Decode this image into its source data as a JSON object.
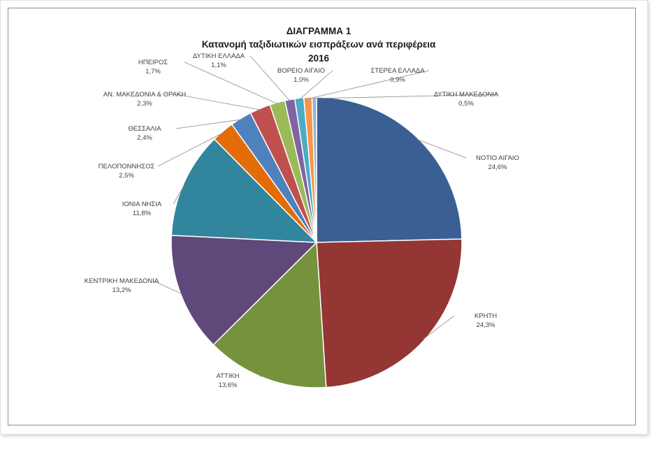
{
  "chart_data": {
    "type": "pie",
    "title_lines": [
      "ΔΙΑΓΡΑΜΜΑ 1",
      "Κατανομή ταξιδιωτικών εισπράξεων ανά περιφέρεια",
      "2016"
    ],
    "slices": [
      {
        "label": "ΝΟΤΙΟ ΑΙΓΑΙΟ",
        "value": 24.6,
        "value_label": "24,6%",
        "color": "#3A6093"
      },
      {
        "label": "ΚΡΗΤΗ",
        "value": 24.3,
        "value_label": "24,3%",
        "color": "#943634"
      },
      {
        "label": "ΑΤΤΙΚΗ",
        "value": 13.6,
        "value_label": "13,6%",
        "color": "#76923C"
      },
      {
        "label": "ΚΕΝΤΡΙΚΗ ΜΑΚΕΔΟΝΙΑ",
        "value": 13.2,
        "value_label": "13,2%",
        "color": "#5F497A"
      },
      {
        "label": "ΙΟΝΙΑ ΝΗΣΙΑ",
        "value": 11.8,
        "value_label": "11,8%",
        "color": "#31859C"
      },
      {
        "label": "ΠΕΛΟΠΟΝΝΗΣΟΣ",
        "value": 2.5,
        "value_label": "2,5%",
        "color": "#E36C09"
      },
      {
        "label": "ΘΕΣΣΑΛΙΑ",
        "value": 2.4,
        "value_label": "2,4%",
        "color": "#4F81BD"
      },
      {
        "label": "ΑΝ. ΜΑΚΕΔΟΝΙΑ & ΘΡΑΚΗ",
        "value": 2.3,
        "value_label": "2,3%",
        "color": "#C0504D"
      },
      {
        "label": "ΗΠΕΙΡΟΣ",
        "value": 1.7,
        "value_label": "1,7%",
        "color": "#9BBB59"
      },
      {
        "label": "ΔΥΤΙΚΗ ΕΛΛΑΔΑ",
        "value": 1.1,
        "value_label": "1,1%",
        "color": "#8064A2"
      },
      {
        "label": "ΒΟΡΕΙΟ ΑΙΓΑΙΟ",
        "value": 1.0,
        "value_label": "1,0%",
        "color": "#4BACC6"
      },
      {
        "label": "ΣΤΕΡΕΑ ΕΛΛΑΔΑ",
        "value": 0.9,
        "value_label": "0,9%",
        "color": "#F79646"
      },
      {
        "label": "ΔΥΤΙΚΗ ΜΑΚΕΔΟΝΙΑ",
        "value": 0.5,
        "value_label": "0,5%",
        "color": "#95B3D7"
      }
    ]
  }
}
